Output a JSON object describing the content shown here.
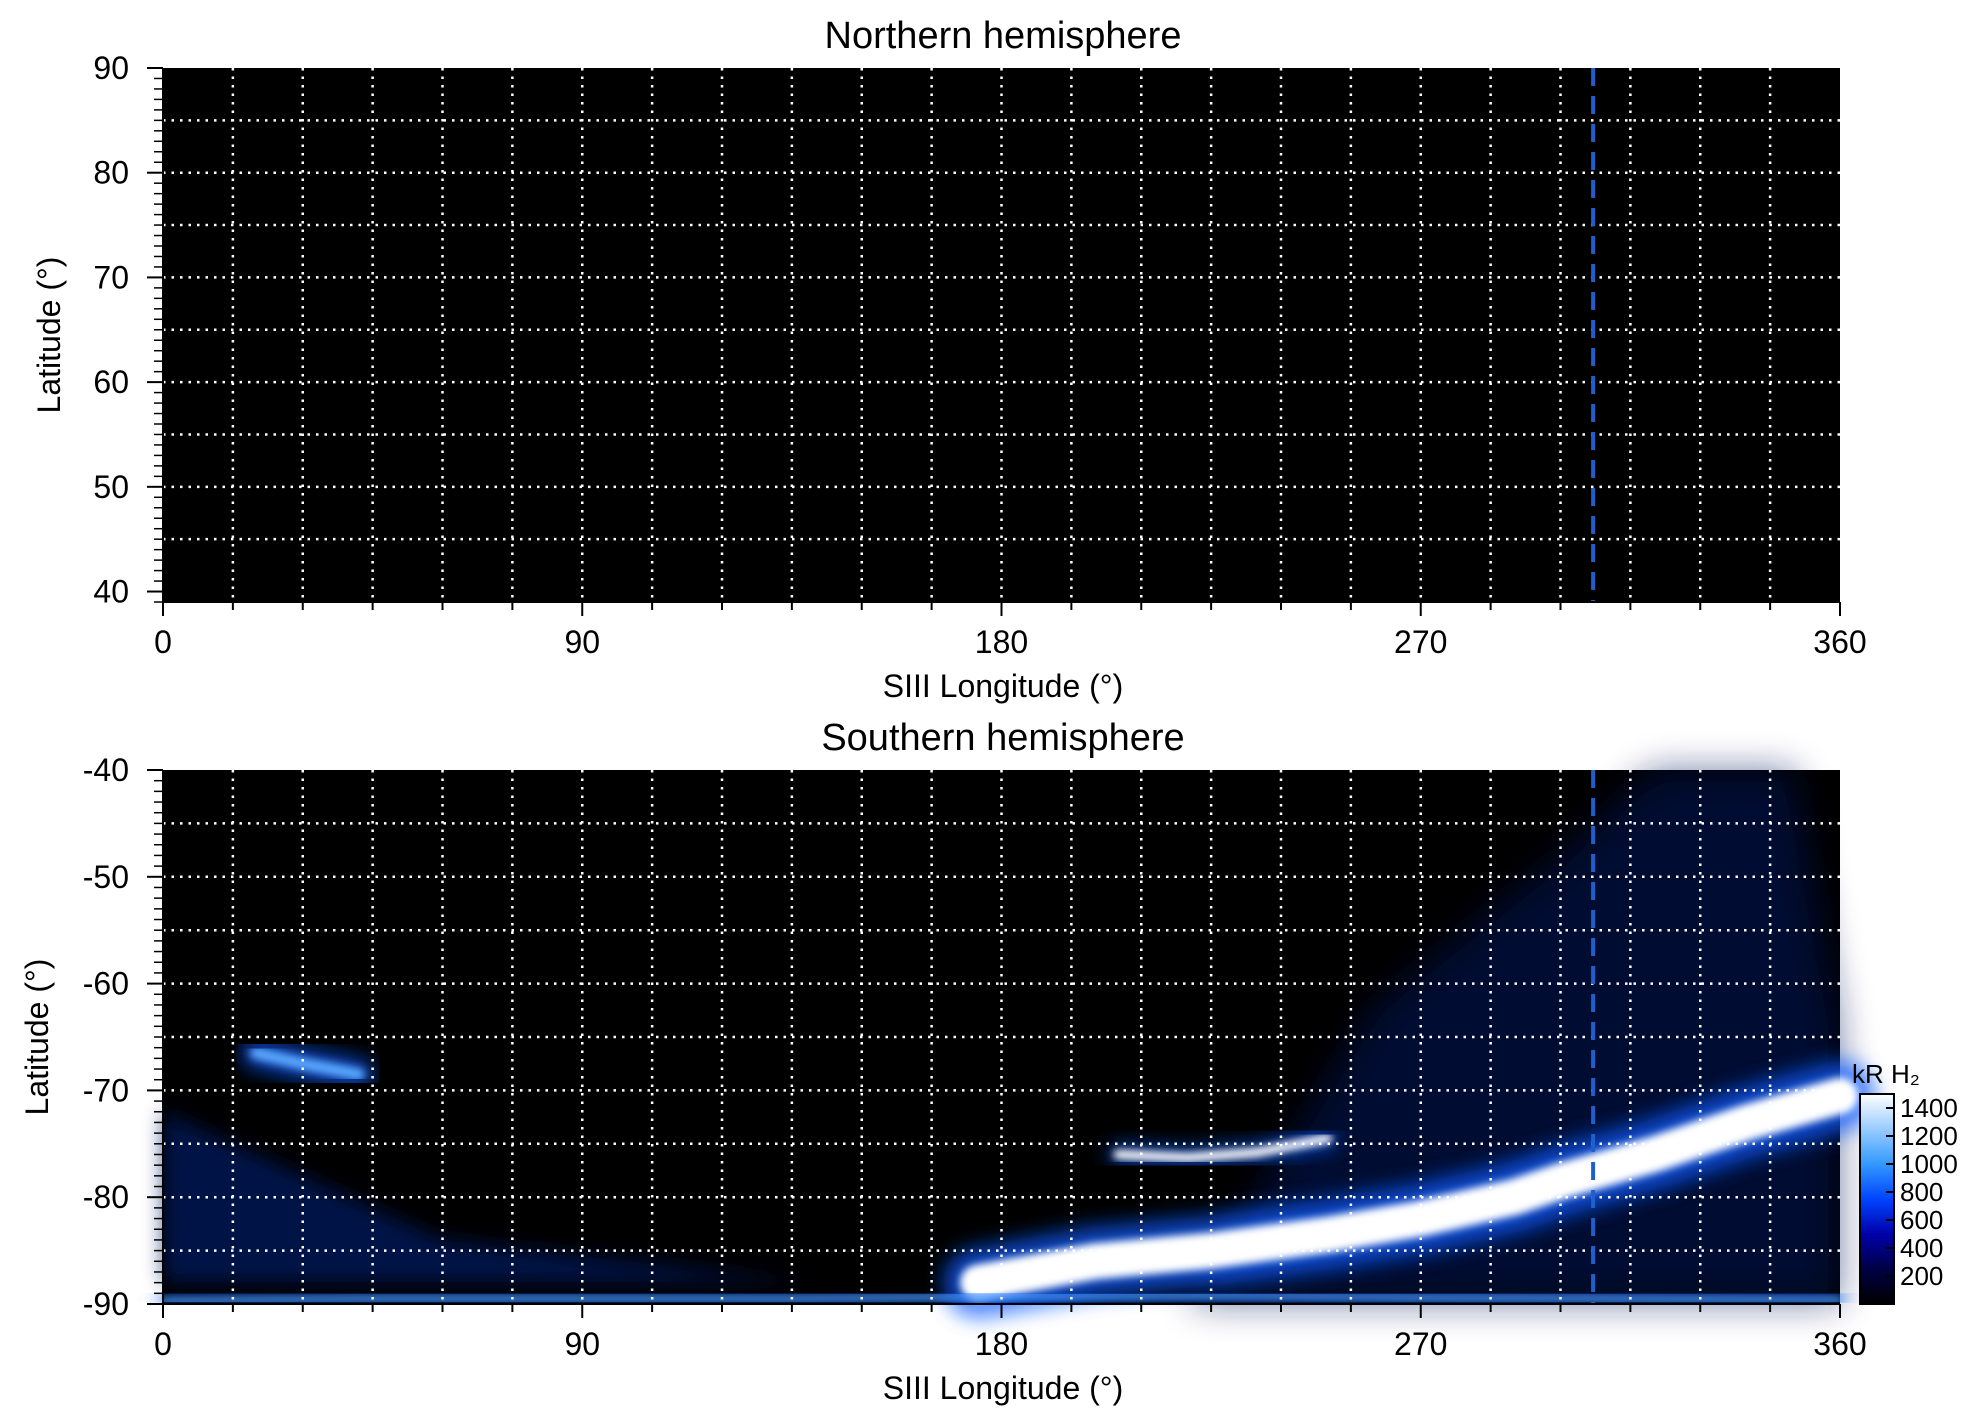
{
  "chart_data": [
    {
      "type": "heatmap",
      "title": "Northern hemisphere",
      "xlabel": "SIII Longitude (°)",
      "ylabel": "Latitude (°)",
      "xlim": [
        0,
        360
      ],
      "ylim": [
        39,
        90
      ],
      "xticks": [
        0,
        90,
        180,
        270,
        360
      ],
      "yticks": [
        90,
        80,
        70,
        60,
        50,
        40
      ],
      "grid_x": [
        15,
        30,
        45,
        60,
        75,
        90,
        105,
        120,
        135,
        150,
        165,
        180,
        195,
        210,
        225,
        240,
        255,
        270,
        285,
        300,
        315,
        330,
        345
      ],
      "grid_y": [
        85,
        80,
        75,
        70,
        65,
        60,
        55,
        50,
        45
      ],
      "grid": true,
      "reference_longitude": 307,
      "emission": []
    },
    {
      "type": "heatmap",
      "title": "Southern hemisphere",
      "xlabel": "SIII Longitude (°)",
      "ylabel": "Latitude (°)",
      "xlim": [
        0,
        360
      ],
      "ylim": [
        -90,
        -40
      ],
      "xticks": [
        0,
        90,
        180,
        270,
        360
      ],
      "yticks": [
        -40,
        -50,
        -60,
        -70,
        -80,
        -90
      ],
      "grid_x": [
        15,
        30,
        45,
        60,
        75,
        90,
        105,
        120,
        135,
        150,
        165,
        180,
        195,
        210,
        225,
        240,
        255,
        270,
        285,
        300,
        315,
        330,
        345
      ],
      "grid_y": [
        -45,
        -50,
        -55,
        -60,
        -65,
        -70,
        -75,
        -80,
        -85
      ],
      "grid": true,
      "reference_longitude": 307,
      "emission": [
        {
          "feature": "main oval arc",
          "lon": [
            175,
            200,
            225,
            250,
            270,
            290,
            300,
            320,
            340,
            360
          ],
          "lat": [
            -88,
            -86,
            -85,
            -83.5,
            -82,
            -80,
            -78.5,
            -76,
            -73,
            -70.5
          ],
          "brightness_kR": 1400
        },
        {
          "feature": "poleward arc",
          "lon": [
            205,
            220,
            235,
            250
          ],
          "lat": [
            -76,
            -76.3,
            -75.8,
            -74.5
          ],
          "brightness_kR": 1300
        },
        {
          "feature": "patch",
          "lon": [
            20,
            30,
            42
          ],
          "lat": [
            -66.5,
            -67.5,
            -68.5
          ],
          "brightness_kR": 900
        },
        {
          "feature": "limb band",
          "lon": [
            0,
            45,
            90,
            135,
            180,
            225,
            270,
            315,
            360
          ],
          "lat": [
            -89.7,
            -89.5,
            -89.5,
            -89.5,
            -89.3,
            -89.2,
            -89.4,
            -89.5,
            -89.6
          ],
          "brightness_kR": 700
        }
      ],
      "colorbar": {
        "label": "kR H₂",
        "ticks": [
          200,
          400,
          600,
          800,
          1000,
          1200,
          1400
        ],
        "range": [
          0,
          1500
        ],
        "colors": [
          "#000000",
          "#000044",
          "#0000aa",
          "#0044ff",
          "#3399ff",
          "#99ccff",
          "#ffffff"
        ]
      }
    }
  ],
  "colors": {
    "background": "#000000",
    "grid": "#ffffff",
    "reference_line": "#1f5fcc",
    "emission_low": "#0a1e7a",
    "emission_mid": "#0a5cff",
    "emission_high": "#ffffff"
  }
}
